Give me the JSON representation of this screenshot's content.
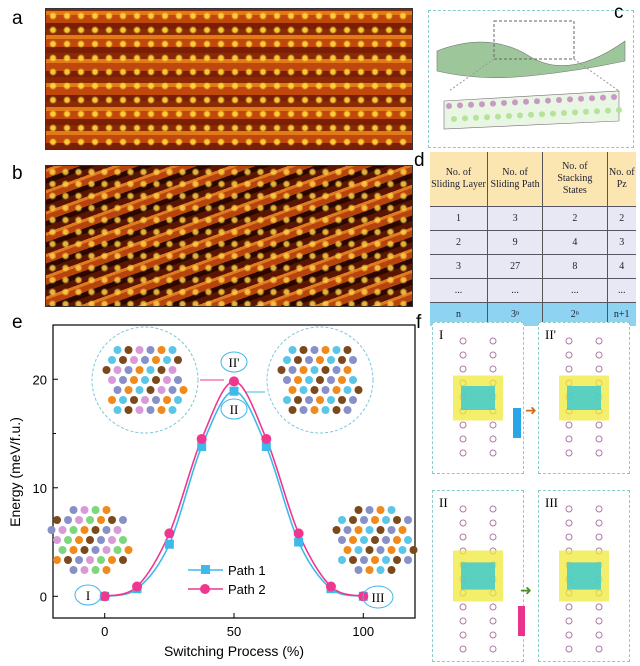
{
  "panel_labels": {
    "a": "a",
    "b": "b",
    "c": "c",
    "d": "d",
    "e": "e",
    "f": "f"
  },
  "table": {
    "headers": [
      "No. of Sliding Layer",
      "No. of Sliding Path",
      "No. of Stacking States",
      "No. of Pz"
    ],
    "rows": [
      [
        "1",
        "3",
        "2",
        "2"
      ],
      [
        "2",
        "9",
        "4",
        "3"
      ],
      [
        "3",
        "27",
        "8",
        "4"
      ],
      [
        "...",
        "...",
        "...",
        "..."
      ],
      [
        "n",
        "3ⁿ",
        "2ⁿ",
        "n+1"
      ]
    ]
  },
  "panel_f": {
    "labels": [
      "I",
      "II'",
      "II",
      "III"
    ]
  },
  "colors": {
    "path1": "#3fb8ea",
    "path2": "#f0378f",
    "table_header": "#fbe6b2",
    "table_last_row": "#8fd3f2"
  },
  "chart_data": {
    "type": "line",
    "xlabel": "Switching Process (%)",
    "ylabel": "Energy (meV/f.u.)",
    "xlim": [
      -20,
      120
    ],
    "ylim": [
      -2,
      25
    ],
    "xticks": [
      0,
      50,
      100
    ],
    "yticks": [
      0,
      10,
      20
    ],
    "grid": false,
    "legend": "bottom-center",
    "x": [
      0,
      12.5,
      25,
      37.5,
      50,
      62.5,
      75,
      87.5,
      100
    ],
    "series": [
      {
        "name": "Path 1",
        "marker": "square",
        "color": "#3fb8ea",
        "values": [
          0,
          0.7,
          4.8,
          13.8,
          18.9,
          13.8,
          5.0,
          0.7,
          0
        ]
      },
      {
        "name": "Path 2",
        "marker": "circle",
        "color": "#f0378f",
        "values": [
          0,
          0.9,
          5.8,
          14.5,
          19.8,
          14.5,
          5.8,
          0.9,
          0
        ]
      }
    ],
    "annotations": [
      "I",
      "II'",
      "II",
      "III"
    ]
  }
}
